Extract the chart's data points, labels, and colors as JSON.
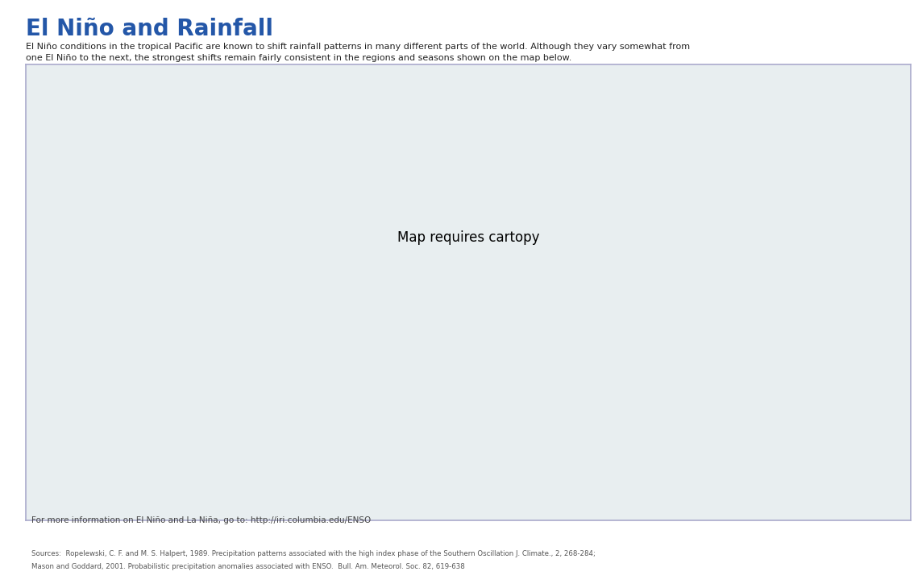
{
  "title": "El Niño and Rainfall",
  "title_color": "#2457A8",
  "subtitle_line1": "El Niño conditions in the tropical Pacific are known to shift rainfall patterns in many different parts of the world. Although they vary somewhat from",
  "subtitle_line2": "one El Niño to the next, the strongest shifts remain fairly consistent in the regions and seasons shown on the map below.",
  "footer1": "For more information on El Niño and La Niña, go to: http://iri.columbia.edu/ENSO",
  "footer2_line1": "Sources:  Ropelewski, C. F. and M. S. Halpert, 1989. Precipitation patterns associated with the high index phase of the Southern Oscillation J. Climate., 2, 268-284;",
  "footer2_line2": "Mason and Goddard, 2001. Probabilistic precipitation anomalies associated with ENSO.  Bull. Am. Meteorol. Soc. 82, 619-638",
  "wet_color": "#6aab5f",
  "dry_color": "#dfd89e",
  "ocean_color": "#e8eef0",
  "land_color": "#e0e0e0",
  "land_edge": "#aaaaaa",
  "box_bg": "#f5f5f8",
  "box_edge": "#aaaacc",
  "legend_text_color": "#999999"
}
